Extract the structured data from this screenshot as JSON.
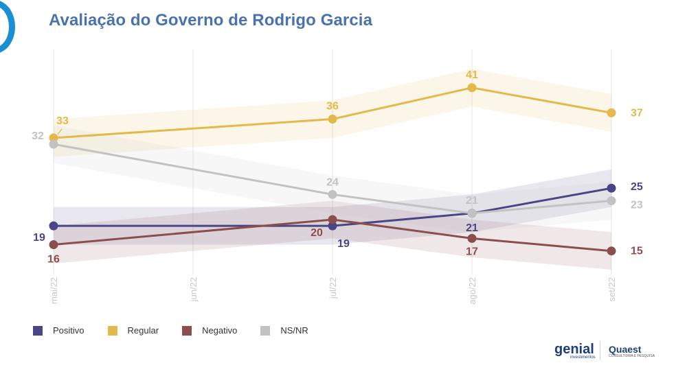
{
  "header": {
    "title": "Avaliação do Governo de Rodrigo Garcia"
  },
  "chart_data": {
    "type": "line",
    "title": "Avaliação do Governo de Rodrigo Garcia",
    "categories": [
      "mai/22",
      "jun/22",
      "jul/22",
      "ago/22",
      "set/22"
    ],
    "series": [
      {
        "name": "Positivo",
        "color": "#4a4585",
        "values": [
          19,
          null,
          19,
          21,
          25
        ],
        "labels": [
          "19",
          "",
          "19",
          "21",
          "25"
        ]
      },
      {
        "name": "Regular",
        "color": "#e3b94c",
        "values": [
          33,
          null,
          36,
          41,
          37
        ],
        "labels": [
          "33",
          "",
          "36",
          "41",
          "37"
        ]
      },
      {
        "name": "Negativo",
        "color": "#8a4f4c",
        "values": [
          16,
          null,
          20,
          17,
          15
        ],
        "labels": [
          "16",
          "",
          "20",
          "17",
          "15"
        ]
      },
      {
        "name": "NS/NR",
        "color": "#c2c2c2",
        "values": [
          32,
          null,
          24,
          21,
          23
        ],
        "labels": [
          "32",
          "",
          "24",
          "21",
          "23"
        ]
      }
    ],
    "confidence_band": 3,
    "ylim": [
      12,
      45
    ],
    "grid": "vertical",
    "legend": "bottom-left"
  },
  "legend": {
    "items": [
      {
        "label": "Positivo",
        "color": "#4a4585"
      },
      {
        "label": "Regular",
        "color": "#e3b94c"
      },
      {
        "label": "Negativo",
        "color": "#8a4f4c"
      },
      {
        "label": "NS/NR",
        "color": "#c2c2c2"
      }
    ]
  },
  "brands": {
    "genial": "genial",
    "genial_sub": "investimentos",
    "quaest": "Quaest",
    "quaest_sub": "CONSULTORIA E PESQUISA"
  }
}
